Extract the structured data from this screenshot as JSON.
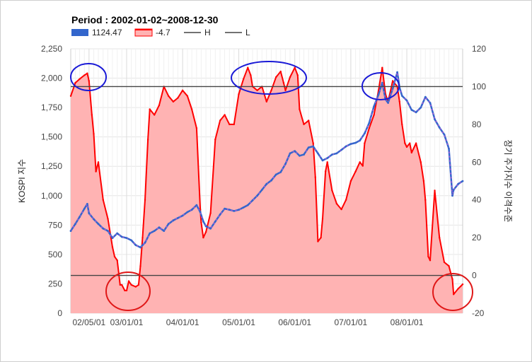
{
  "chart_data": {
    "type": "line",
    "title": "Period : 2002-01-02~2008-12-30",
    "ylabel": "KOSPI 지수",
    "y2label": "장기 주가지수 이격수준",
    "ylim": [
      0,
      2250
    ],
    "y2lim": [
      -20,
      120
    ],
    "yticks": [
      "0",
      "250",
      "500",
      "750",
      "1,000",
      "1,250",
      "1,500",
      "1,750",
      "2,000",
      "2,250"
    ],
    "y2ticks": [
      "-20",
      "0",
      "20",
      "40",
      "60",
      "80",
      "100",
      "120"
    ],
    "xticks": [
      "02/05/01",
      "03/01/01",
      "04/01/01",
      "05/01/01",
      "06/01/01",
      "07/01/01",
      "08/01/01"
    ],
    "grid": true,
    "legend_position": "top-left",
    "legend": [
      {
        "label": "1124.47",
        "color": "#3366cc",
        "kind": "box"
      },
      {
        "label": "-4.7",
        "color": "#ff0000",
        "kind": "area"
      },
      {
        "label": "H",
        "color": "#444444",
        "kind": "line"
      },
      {
        "label": "L",
        "color": "#444444",
        "kind": "line"
      }
    ],
    "reference_lines": {
      "H": 100,
      "L": 0
    },
    "series": [
      {
        "name": "1124.47",
        "axis": "left",
        "color": "#3366cc",
        "x": [
          "02/01/02",
          "02/02/01",
          "02/03/01",
          "02/04/01",
          "02/04/20",
          "02/05/01",
          "02/06/01",
          "02/07/01",
          "02/08/01",
          "02/09/01",
          "02/10/01",
          "02/11/01",
          "02/12/01",
          "03/01/01",
          "03/02/01",
          "03/03/01",
          "03/04/01",
          "03/05/01",
          "03/06/01",
          "03/07/01",
          "03/08/01",
          "03/09/01",
          "03/10/01",
          "03/11/01",
          "03/12/01",
          "04/01/01",
          "04/02/01",
          "04/03/01",
          "04/04/01",
          "04/04/25",
          "04/05/15",
          "04/06/01",
          "04/07/01",
          "04/08/01",
          "04/09/01",
          "04/10/01",
          "04/11/01",
          "04/12/01",
          "05/01/01",
          "05/02/01",
          "05/03/01",
          "05/04/01",
          "05/05/01",
          "05/06/01",
          "05/07/01",
          "05/08/01",
          "05/09/01",
          "05/10/01",
          "05/11/01",
          "05/12/01",
          "06/01/01",
          "06/02/01",
          "06/03/01",
          "06/04/01",
          "06/05/01",
          "06/06/01",
          "06/07/01",
          "06/08/01",
          "06/09/01",
          "06/10/01",
          "06/11/01",
          "06/12/01",
          "07/01/01",
          "07/02/01",
          "07/03/01",
          "07/04/01",
          "07/05/01",
          "07/06/01",
          "07/07/01",
          "07/07/25",
          "07/08/15",
          "07/09/01",
          "07/10/01",
          "07/10/31",
          "07/11/15",
          "07/12/01",
          "08/01/01",
          "08/02/01",
          "08/03/01",
          "08/04/01",
          "08/05/01",
          "08/06/01",
          "08/07/01",
          "08/08/01",
          "08/09/01",
          "08/10/01",
          "08/10/24",
          "08/11/01",
          "08/12/01",
          "08/12/30"
        ],
        "values": [
          700,
          760,
          820,
          890,
          930,
          850,
          800,
          760,
          720,
          700,
          640,
          680,
          650,
          640,
          620,
          580,
          560,
          600,
          680,
          700,
          730,
          700,
          760,
          790,
          810,
          830,
          860,
          880,
          920,
          860,
          780,
          740,
          720,
          780,
          840,
          890,
          880,
          870,
          880,
          900,
          920,
          960,
          1000,
          1050,
          1100,
          1130,
          1180,
          1200,
          1270,
          1360,
          1380,
          1340,
          1350,
          1410,
          1420,
          1360,
          1300,
          1320,
          1350,
          1360,
          1390,
          1420,
          1440,
          1450,
          1470,
          1530,
          1620,
          1760,
          1860,
          1960,
          1820,
          1790,
          1910,
          2050,
          1920,
          1850,
          1810,
          1730,
          1710,
          1750,
          1840,
          1790,
          1650,
          1580,
          1520,
          1400,
          1000,
          1050,
          1100,
          1124.47
        ]
      },
      {
        "name": "-4.7",
        "axis": "right",
        "color": "#ff0000",
        "fill": "#ffb3b3",
        "x": [
          "02/01/02",
          "02/02/01",
          "02/03/01",
          "02/04/01",
          "02/04/20",
          "02/05/01",
          "02/05/20",
          "02/06/01",
          "02/06/15",
          "02/07/01",
          "02/08/01",
          "02/09/01",
          "02/10/01",
          "02/10/15",
          "02/11/01",
          "02/11/20",
          "02/12/01",
          "02/12/20",
          "03/01/01",
          "03/01/15",
          "03/02/01",
          "03/03/01",
          "03/03/20",
          "03/04/01",
          "03/04/15",
          "03/05/01",
          "03/05/20",
          "03/06/01",
          "03/07/01",
          "03/08/01",
          "03/09/01",
          "03/10/01",
          "03/11/01",
          "03/12/01",
          "04/01/01",
          "04/02/01",
          "04/03/01",
          "04/04/01",
          "04/04/25",
          "04/05/01",
          "04/05/15",
          "04/06/01",
          "04/07/01",
          "04/08/01",
          "04/09/01",
          "04/10/01",
          "04/11/01",
          "04/12/01",
          "05/01/01",
          "05/02/01",
          "05/03/01",
          "05/03/20",
          "05/04/01",
          "05/05/01",
          "05/06/01",
          "05/07/01",
          "05/08/01",
          "05/09/01",
          "05/10/01",
          "05/10/20",
          "05/11/01",
          "05/12/01",
          "06/01/01",
          "06/01/20",
          "06/02/01",
          "06/03/01",
          "06/04/01",
          "06/05/01",
          "06/05/15",
          "06/06/01",
          "06/06/20",
          "06/07/01",
          "06/07/20",
          "06/08/01",
          "06/09/01",
          "06/10/01",
          "06/11/01",
          "06/12/01",
          "07/01/01",
          "07/02/01",
          "07/03/01",
          "07/03/20",
          "07/04/01",
          "07/05/01",
          "07/06/01",
          "07/07/01",
          "07/07/25",
          "07/08/15",
          "07/09/01",
          "07/10/01",
          "07/10/31",
          "07/11/15",
          "07/12/01",
          "07/12/20",
          "08/01/01",
          "08/01/20",
          "08/02/01",
          "08/03/01",
          "08/04/01",
          "08/04/20",
          "08/05/01",
          "08/05/20",
          "08/06/01",
          "08/07/01",
          "08/08/01",
          "08/09/01",
          "08/10/01",
          "08/10/24",
          "08/11/01",
          "08/12/01",
          "08/12/30"
        ],
        "values": [
          95,
          102,
          104,
          106,
          107,
          103,
          85,
          75,
          55,
          60,
          40,
          30,
          15,
          10,
          8,
          -5,
          -5,
          -8,
          -8,
          -3,
          -5,
          -6,
          -5,
          5,
          20,
          40,
          72,
          88,
          85,
          90,
          100,
          95,
          92,
          94,
          98,
          95,
          88,
          78,
          35,
          28,
          20,
          23,
          33,
          72,
          82,
          85,
          80,
          80,
          96,
          104,
          110,
          106,
          100,
          98,
          100,
          92,
          98,
          105,
          108,
          102,
          98,
          105,
          110,
          106,
          88,
          80,
          82,
          70,
          52,
          18,
          20,
          30,
          55,
          60,
          45,
          38,
          35,
          40,
          50,
          55,
          60,
          58,
          70,
          78,
          85,
          98,
          110,
          96,
          92,
          103,
          100,
          92,
          80,
          70,
          68,
          70,
          65,
          70,
          60,
          50,
          40,
          10,
          8,
          45,
          20,
          7,
          5,
          -2,
          -10,
          -7,
          -4.7
        ]
      }
    ]
  }
}
